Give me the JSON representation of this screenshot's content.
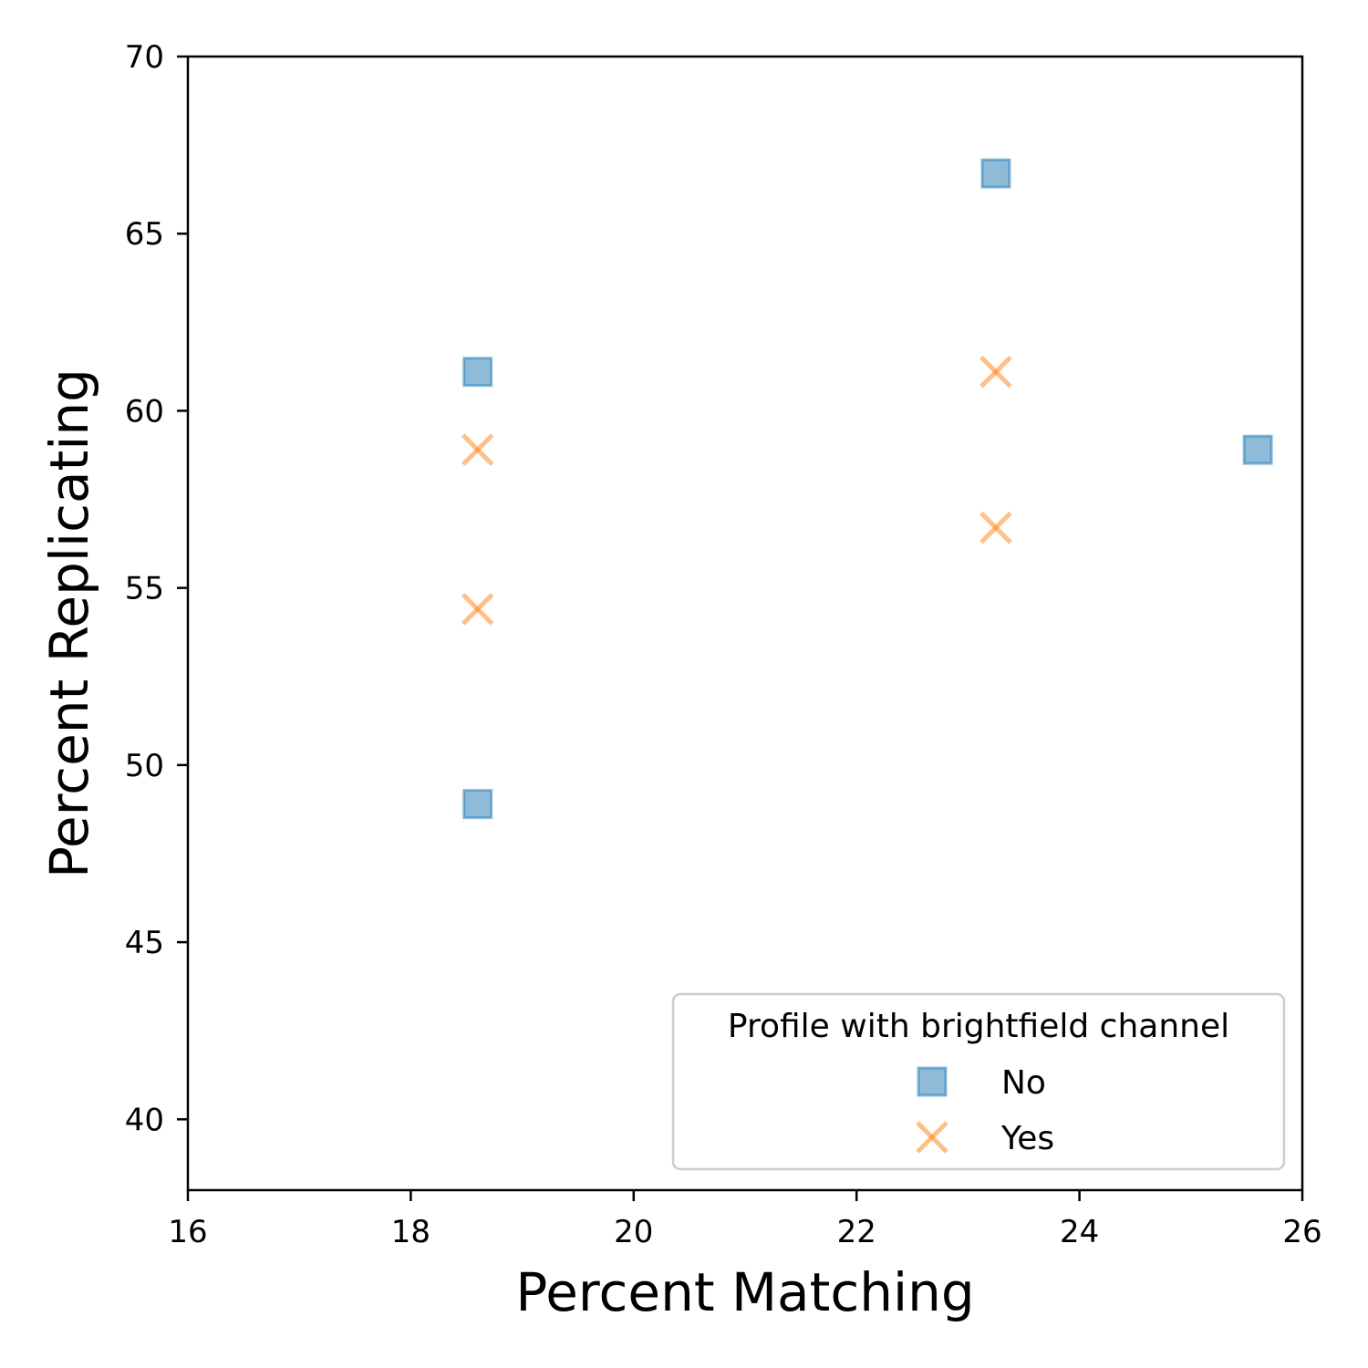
{
  "chart_data": {
    "type": "scatter",
    "xlabel": "Percent Matching",
    "ylabel": "Percent Replicating",
    "xlim": [
      16,
      26
    ],
    "ylim": [
      38,
      70
    ],
    "xticks": [
      16,
      18,
      20,
      22,
      24,
      26
    ],
    "yticks": [
      40,
      45,
      50,
      55,
      60,
      65,
      70
    ],
    "grid": false,
    "legend": {
      "title": "Profile with brightfield channel",
      "placement": "lower-right"
    },
    "series": [
      {
        "name": "No",
        "marker": "square",
        "color": "#1f77b4",
        "points": [
          {
            "x": 18.6,
            "y": 61.1
          },
          {
            "x": 18.6,
            "y": 48.9
          },
          {
            "x": 23.25,
            "y": 66.7
          },
          {
            "x": 25.6,
            "y": 58.9
          }
        ]
      },
      {
        "name": "Yes",
        "marker": "x",
        "color": "#ff7f0e",
        "points": [
          {
            "x": 18.6,
            "y": 58.9
          },
          {
            "x": 18.6,
            "y": 54.4
          },
          {
            "x": 23.25,
            "y": 61.1
          },
          {
            "x": 23.25,
            "y": 56.7
          }
        ]
      }
    ]
  }
}
